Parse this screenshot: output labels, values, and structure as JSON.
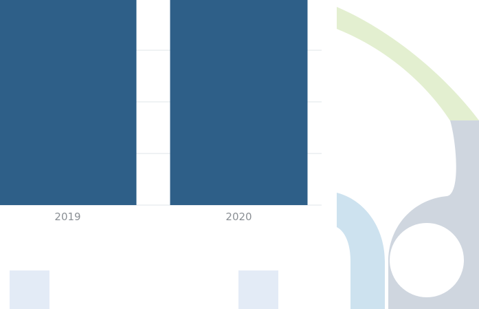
{
  "chart_data": {
    "type": "bar",
    "categories": [
      "2019",
      "2020"
    ],
    "title": "",
    "xlabel": "",
    "ylabel": "",
    "grid": true,
    "series": [
      {
        "values": [
          100,
          100
        ],
        "color": "#2e5f88"
      }
    ]
  },
  "colors": {
    "bar": "#2e5f88",
    "gridline": "#eaedf0",
    "tick_text": "#8a8f94",
    "decor_green": "#e3efd0",
    "decor_gray": "#cfd6df",
    "decor_lightblue": "#cde2ef",
    "decor_paleblue": "#e3ebf6"
  }
}
